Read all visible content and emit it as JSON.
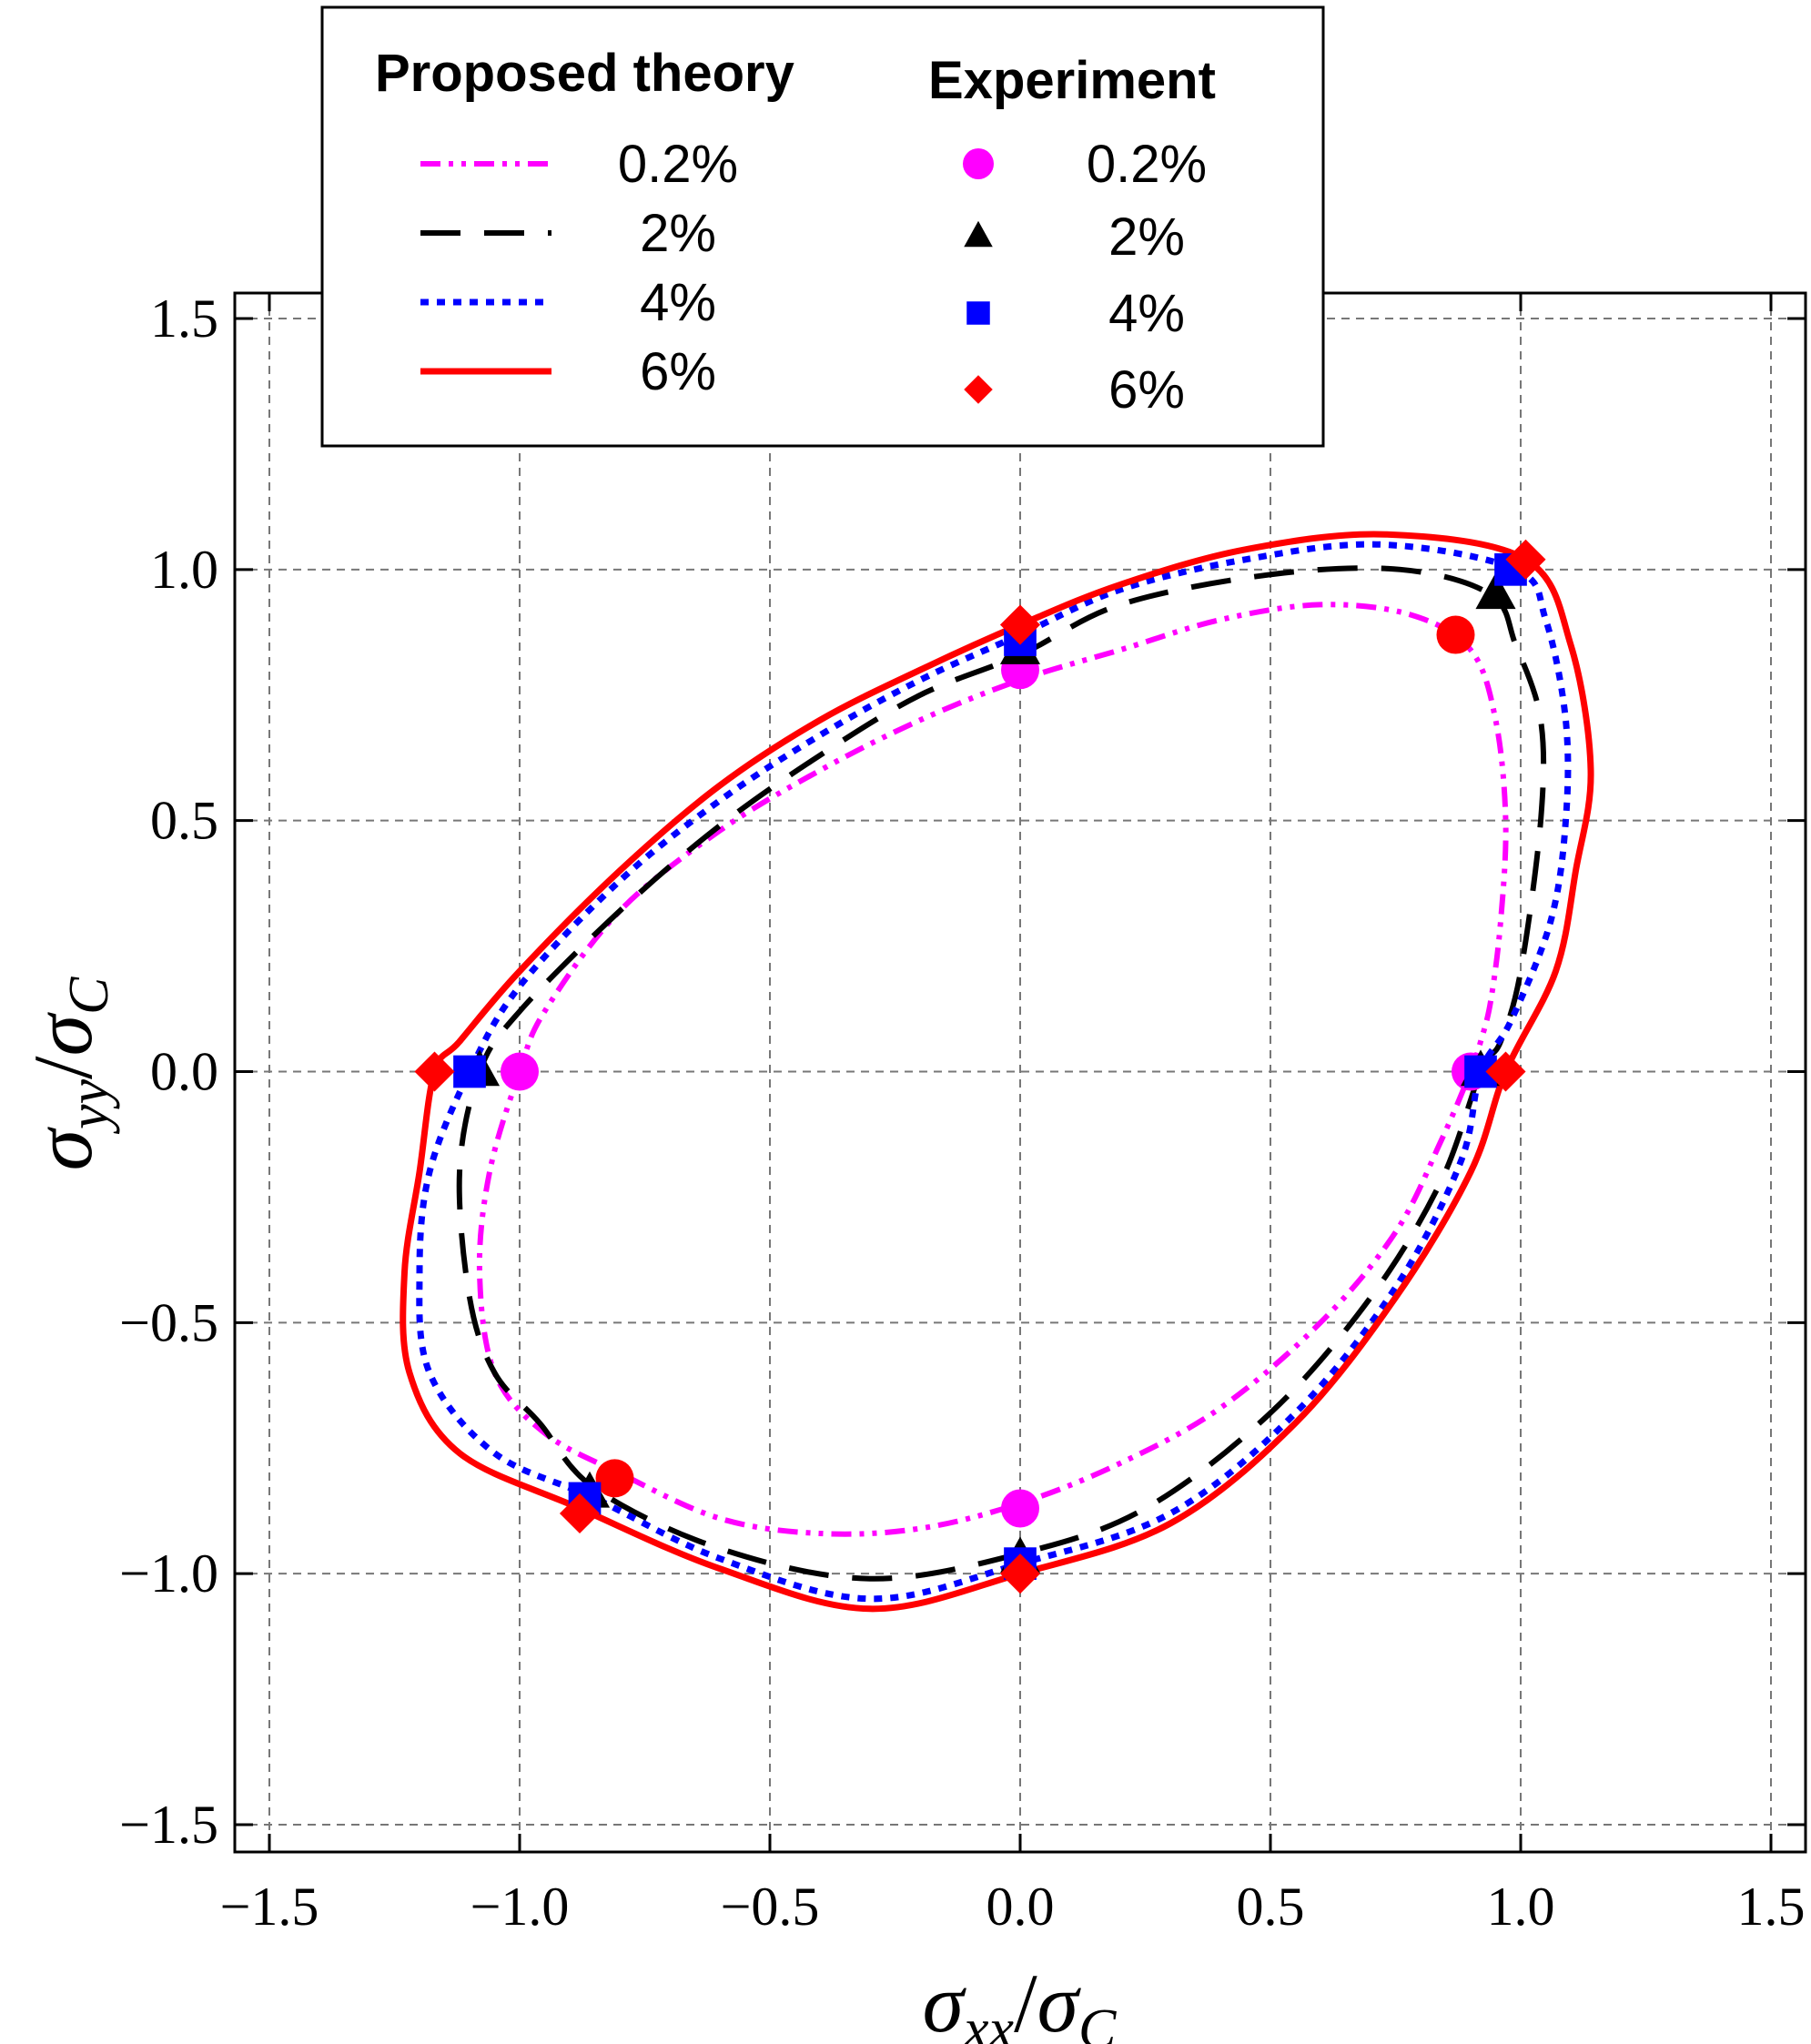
{
  "chart_data": {
    "type": "line",
    "title": "",
    "xlabel": {
      "main": "σ",
      "sub": "xx",
      "sep": "/",
      "main2": "σ",
      "sub2": "C"
    },
    "ylabel": {
      "main": "σ",
      "sub": "yy",
      "sep": "/",
      "main2": "σ",
      "sub2": "C"
    },
    "xlim": [
      -1.5,
      1.5
    ],
    "ylim": [
      -1.5,
      1.5
    ],
    "grid": true,
    "x_ticks": [
      -1.5,
      -1.0,
      -0.5,
      0.0,
      0.5,
      1.0,
      1.5
    ],
    "y_ticks": [
      -1.5,
      -1.0,
      -0.5,
      0.0,
      0.5,
      1.0,
      1.5
    ],
    "x_tick_labels": [
      "−1.5",
      "−1.0",
      "−0.5",
      "0.0",
      "0.5",
      "1.0",
      "1.5"
    ],
    "y_tick_labels": [
      "−1.5",
      "−1.0",
      "−0.5",
      "0.0",
      "0.5",
      "1.0",
      "1.5"
    ],
    "legend": {
      "position": "top-left",
      "theory_title": "Proposed theory",
      "experiment_title": "Experiment"
    },
    "theory_series": [
      {
        "name": "0.2%",
        "color": "#ff00ff",
        "dash": "dashdotdot",
        "points": [
          [
            0.9,
            0.0
          ],
          [
            0.92,
            0.06
          ],
          [
            0.94,
            0.14
          ],
          [
            0.96,
            0.3
          ],
          [
            0.97,
            0.5
          ],
          [
            0.95,
            0.7
          ],
          [
            0.9,
            0.84
          ],
          [
            0.78,
            0.91
          ],
          [
            0.6,
            0.93
          ],
          [
            0.4,
            0.9
          ],
          [
            0.2,
            0.84
          ],
          [
            0.0,
            0.78
          ],
          [
            -0.2,
            0.7
          ],
          [
            -0.4,
            0.6
          ],
          [
            -0.6,
            0.48
          ],
          [
            -0.8,
            0.32
          ],
          [
            -0.95,
            0.12
          ],
          [
            -1.0,
            0.0
          ],
          [
            -1.06,
            -0.2
          ],
          [
            -1.08,
            -0.4
          ],
          [
            -1.05,
            -0.6
          ],
          [
            -0.95,
            -0.72
          ],
          [
            -0.8,
            -0.8
          ],
          [
            -0.6,
            -0.89
          ],
          [
            -0.4,
            -0.92
          ],
          [
            -0.2,
            -0.91
          ],
          [
            0.0,
            -0.86
          ],
          [
            0.2,
            -0.78
          ],
          [
            0.4,
            -0.67
          ],
          [
            0.6,
            -0.5
          ],
          [
            0.75,
            -0.32
          ],
          [
            0.84,
            -0.14
          ],
          [
            0.9,
            0.0
          ]
        ]
      },
      {
        "name": "2%",
        "color": "#000000",
        "dash": "longdash",
        "points": [
          [
            0.92,
            0.0
          ],
          [
            0.96,
            0.06
          ],
          [
            1.0,
            0.2
          ],
          [
            1.04,
            0.5
          ],
          [
            1.04,
            0.7
          ],
          [
            0.99,
            0.85
          ],
          [
            0.94,
            0.95
          ],
          [
            0.76,
            1.0
          ],
          [
            0.5,
            0.99
          ],
          [
            0.2,
            0.93
          ],
          [
            0.0,
            0.83
          ],
          [
            -0.2,
            0.75
          ],
          [
            -0.4,
            0.63
          ],
          [
            -0.6,
            0.49
          ],
          [
            -0.8,
            0.32
          ],
          [
            -1.0,
            0.12
          ],
          [
            -1.08,
            0.0
          ],
          [
            -1.12,
            -0.2
          ],
          [
            -1.1,
            -0.45
          ],
          [
            -1.05,
            -0.6
          ],
          [
            -0.96,
            -0.7
          ],
          [
            -0.85,
            -0.83
          ],
          [
            -0.6,
            -0.95
          ],
          [
            -0.3,
            -1.01
          ],
          [
            0.0,
            -0.96
          ],
          [
            0.25,
            -0.87
          ],
          [
            0.5,
            -0.68
          ],
          [
            0.7,
            -0.45
          ],
          [
            0.84,
            -0.22
          ],
          [
            0.92,
            0.0
          ]
        ]
      },
      {
        "name": "4%",
        "color": "#0000ff",
        "dash": "dotted",
        "points": [
          [
            0.92,
            0.0
          ],
          [
            0.98,
            0.1
          ],
          [
            1.06,
            0.3
          ],
          [
            1.09,
            0.5
          ],
          [
            1.09,
            0.7
          ],
          [
            1.05,
            0.9
          ],
          [
            0.99,
            1.0
          ],
          [
            0.72,
            1.05
          ],
          [
            0.45,
            1.02
          ],
          [
            0.2,
            0.96
          ],
          [
            0.0,
            0.87
          ],
          [
            -0.2,
            0.78
          ],
          [
            -0.4,
            0.67
          ],
          [
            -0.6,
            0.54
          ],
          [
            -0.8,
            0.38
          ],
          [
            -1.0,
            0.17
          ],
          [
            -1.1,
            0.0
          ],
          [
            -1.18,
            -0.2
          ],
          [
            -1.2,
            -0.4
          ],
          [
            -1.18,
            -0.6
          ],
          [
            -1.05,
            -0.76
          ],
          [
            -0.85,
            -0.85
          ],
          [
            -0.6,
            -0.97
          ],
          [
            -0.3,
            -1.05
          ],
          [
            0.0,
            -0.98
          ],
          [
            0.3,
            -0.88
          ],
          [
            0.55,
            -0.68
          ],
          [
            0.75,
            -0.43
          ],
          [
            0.88,
            -0.18
          ],
          [
            0.92,
            0.0
          ]
        ]
      },
      {
        "name": "6%",
        "color": "#ff0000",
        "dash": "solid",
        "points": [
          [
            0.97,
            0.0
          ],
          [
            1.07,
            0.2
          ],
          [
            1.11,
            0.4
          ],
          [
            1.14,
            0.6
          ],
          [
            1.1,
            0.85
          ],
          [
            1.01,
            1.02
          ],
          [
            0.73,
            1.07
          ],
          [
            0.45,
            1.04
          ],
          [
            0.2,
            0.97
          ],
          [
            0.0,
            0.89
          ],
          [
            -0.2,
            0.8
          ],
          [
            -0.4,
            0.7
          ],
          [
            -0.6,
            0.57
          ],
          [
            -0.8,
            0.4
          ],
          [
            -1.0,
            0.2
          ],
          [
            -1.12,
            0.06
          ],
          [
            -1.17,
            0.0
          ],
          [
            -1.2,
            -0.2
          ],
          [
            -1.23,
            -0.4
          ],
          [
            -1.22,
            -0.6
          ],
          [
            -1.12,
            -0.76
          ],
          [
            -0.88,
            -0.87
          ],
          [
            -0.6,
            -0.99
          ],
          [
            -0.3,
            -1.07
          ],
          [
            0.0,
            -1.0
          ],
          [
            0.3,
            -0.9
          ],
          [
            0.55,
            -0.7
          ],
          [
            0.75,
            -0.45
          ],
          [
            0.9,
            -0.2
          ],
          [
            0.97,
            0.0
          ]
        ]
      }
    ],
    "experiment_series": [
      {
        "name": "0.2%",
        "marker": "circle",
        "color": "#ff00ff",
        "points": [
          [
            0.0,
            0.8
          ],
          [
            -1.0,
            0.0
          ],
          [
            0.9,
            0.0
          ],
          [
            0.0,
            -0.87
          ]
        ]
      },
      {
        "name": "2%",
        "marker": "triangle",
        "color": "#000000",
        "points": [
          [
            0.0,
            0.84
          ],
          [
            0.95,
            0.95
          ],
          [
            -1.08,
            0.0
          ],
          [
            0.92,
            0.0
          ],
          [
            -0.86,
            -0.84
          ],
          [
            0.0,
            -0.97
          ]
        ]
      },
      {
        "name": "4%",
        "marker": "square",
        "color": "#0000ff",
        "points": [
          [
            0.0,
            0.86
          ],
          [
            0.98,
            1.0
          ],
          [
            -1.1,
            0.0
          ],
          [
            0.92,
            0.0
          ],
          [
            -0.87,
            -0.85
          ],
          [
            0.0,
            -0.98
          ]
        ]
      },
      {
        "name": "6%",
        "marker": "diamond",
        "color": "#ff0000",
        "points": [
          [
            0.0,
            0.89
          ],
          [
            1.01,
            1.02
          ],
          [
            -1.17,
            0.0
          ],
          [
            0.97,
            0.0
          ],
          [
            -0.88,
            -0.88
          ],
          [
            0.0,
            -1.0
          ]
        ]
      },
      {
        "name": "6% (circle)",
        "marker": "circle",
        "color": "#ff0000",
        "in_legend": false,
        "points": [
          [
            0.87,
            0.87
          ],
          [
            -0.81,
            -0.81
          ]
        ]
      }
    ]
  }
}
